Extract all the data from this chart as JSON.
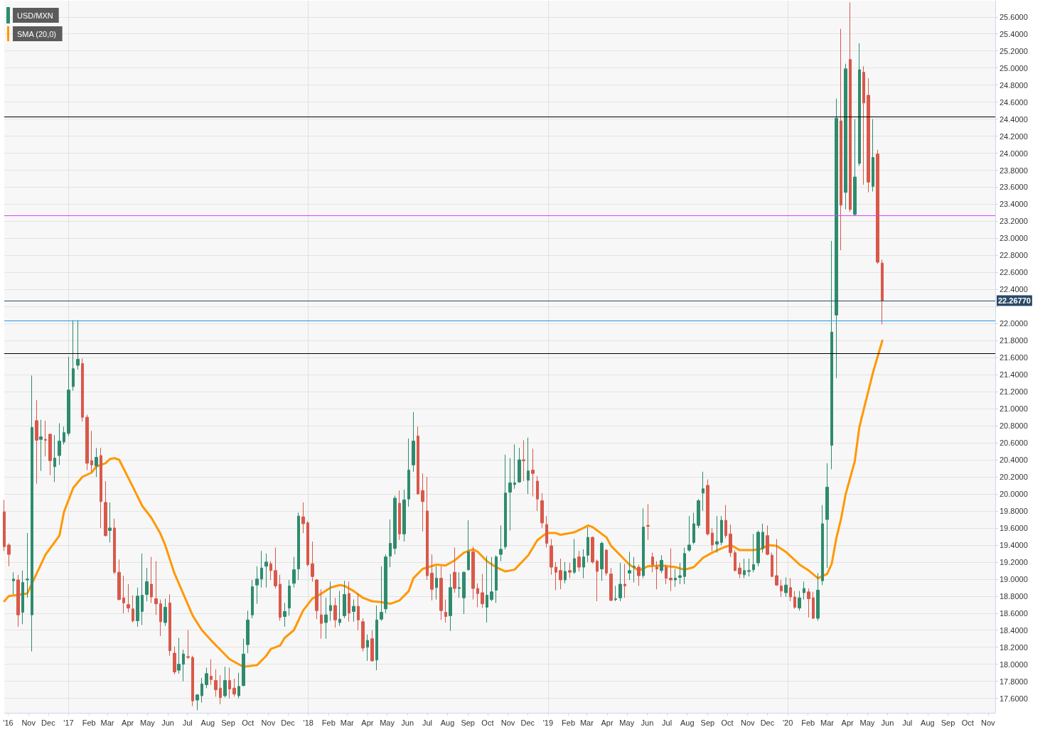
{
  "chart_data": {
    "type": "candlestick",
    "x": [
      "2016-09-25",
      "2016-10-02",
      "2016-10-09",
      "2016-10-16",
      "2016-10-23",
      "2016-10-30",
      "2016-11-06",
      "2016-11-13",
      "2016-11-20",
      "2016-11-27",
      "2016-12-04",
      "2016-12-11",
      "2016-12-18",
      "2016-12-25",
      "2017-01-01",
      "2017-01-08",
      "2017-01-15",
      "2017-01-22",
      "2017-01-29",
      "2017-02-05",
      "2017-02-12",
      "2017-02-19",
      "2017-02-26",
      "2017-03-05",
      "2017-03-12",
      "2017-03-19",
      "2017-03-26",
      "2017-04-02",
      "2017-04-09",
      "2017-04-16",
      "2017-04-23",
      "2017-04-30",
      "2017-05-07",
      "2017-05-14",
      "2017-05-21",
      "2017-05-28",
      "2017-06-04",
      "2017-06-11",
      "2017-06-18",
      "2017-06-25",
      "2017-07-02",
      "2017-07-09",
      "2017-07-16",
      "2017-07-23",
      "2017-07-30",
      "2017-08-06",
      "2017-08-13",
      "2017-08-20",
      "2017-08-27",
      "2017-09-03",
      "2017-09-10",
      "2017-09-17",
      "2017-09-24",
      "2017-10-01",
      "2017-10-08",
      "2017-10-15",
      "2017-10-22",
      "2017-10-29",
      "2017-11-05",
      "2017-11-12",
      "2017-11-19",
      "2017-11-26",
      "2017-12-03",
      "2017-12-10",
      "2017-12-17",
      "2017-12-24",
      "2017-12-31",
      "2018-01-07",
      "2018-01-14",
      "2018-01-21",
      "2018-01-28",
      "2018-02-04",
      "2018-02-11",
      "2018-02-18",
      "2018-02-25",
      "2018-03-04",
      "2018-03-11",
      "2018-03-18",
      "2018-03-25",
      "2018-04-01",
      "2018-04-08",
      "2018-04-15",
      "2018-04-22",
      "2018-04-29",
      "2018-05-06",
      "2018-05-13",
      "2018-05-20",
      "2018-05-27",
      "2018-06-03",
      "2018-06-10",
      "2018-06-17",
      "2018-06-24",
      "2018-07-01",
      "2018-07-08",
      "2018-07-15",
      "2018-07-22",
      "2018-07-29",
      "2018-08-05",
      "2018-08-12",
      "2018-08-19",
      "2018-08-26",
      "2018-09-02",
      "2018-09-09",
      "2018-09-16",
      "2018-09-23",
      "2018-09-30",
      "2018-10-07",
      "2018-10-14",
      "2018-10-21",
      "2018-10-28",
      "2018-11-04",
      "2018-11-11",
      "2018-11-18",
      "2018-11-25",
      "2018-12-02",
      "2018-12-09",
      "2018-12-16",
      "2018-12-23",
      "2018-12-30",
      "2019-01-06",
      "2019-01-13",
      "2019-01-20",
      "2019-01-27",
      "2019-02-03",
      "2019-02-10",
      "2019-02-17",
      "2019-02-24",
      "2019-03-03",
      "2019-03-10",
      "2019-03-17",
      "2019-03-24",
      "2019-03-31",
      "2019-04-07",
      "2019-04-14",
      "2019-04-21",
      "2019-04-28",
      "2019-05-05",
      "2019-05-12",
      "2019-05-19",
      "2019-05-26",
      "2019-06-02",
      "2019-06-09",
      "2019-06-16",
      "2019-06-23",
      "2019-06-30",
      "2019-07-07",
      "2019-07-14",
      "2019-07-21",
      "2019-07-28",
      "2019-08-04",
      "2019-08-11",
      "2019-08-18",
      "2019-08-25",
      "2019-09-01",
      "2019-09-08",
      "2019-09-15",
      "2019-09-22",
      "2019-09-29",
      "2019-10-06",
      "2019-10-13",
      "2019-10-20",
      "2019-10-27",
      "2019-11-03",
      "2019-11-10",
      "2019-11-17",
      "2019-11-24",
      "2019-12-01",
      "2019-12-08",
      "2019-12-15",
      "2019-12-22",
      "2019-12-29",
      "2020-01-05",
      "2020-01-12",
      "2020-01-19",
      "2020-01-26",
      "2020-02-02",
      "2020-02-09",
      "2020-02-16",
      "2020-02-23",
      "2020-03-01",
      "2020-03-08",
      "2020-03-15",
      "2020-03-22",
      "2020-03-29",
      "2020-04-05",
      "2020-04-12",
      "2020-04-19",
      "2020-04-26",
      "2020-05-03",
      "2020-05-10",
      "2020-05-17",
      "2020-05-24"
    ],
    "series": [
      {
        "name": "USD/MXN",
        "ohlc": [
          [
            19.79,
            19.93,
            19.33,
            19.38
          ],
          [
            19.4,
            19.42,
            19.15,
            19.29
          ],
          [
            18.98,
            19.08,
            18.82,
            19.0
          ],
          [
            18.99,
            19.05,
            18.44,
            18.58
          ],
          [
            18.61,
            19.1,
            18.47,
            18.96
          ],
          [
            18.99,
            19.54,
            18.78,
            19.0
          ],
          [
            18.58,
            21.39,
            18.15,
            20.78
          ],
          [
            20.86,
            21.1,
            20.12,
            20.63
          ],
          [
            20.64,
            20.87,
            20.27,
            20.67
          ],
          [
            20.64,
            20.86,
            20.44,
            20.63
          ],
          [
            20.7,
            20.71,
            20.22,
            20.39
          ],
          [
            20.32,
            20.69,
            20.14,
            20.42
          ],
          [
            20.45,
            20.83,
            20.34,
            20.62
          ],
          [
            20.61,
            20.79,
            20.58,
            20.72
          ],
          [
            20.71,
            21.61,
            20.68,
            21.22
          ],
          [
            21.26,
            22.04,
            21.21,
            21.47
          ],
          [
            21.51,
            22.04,
            21.46,
            21.58
          ],
          [
            21.53,
            21.59,
            20.85,
            20.9
          ],
          [
            20.9,
            20.93,
            20.28,
            20.36
          ],
          [
            20.39,
            20.74,
            20.26,
            20.34
          ],
          [
            20.33,
            20.54,
            20.2,
            20.43
          ],
          [
            20.45,
            20.54,
            19.6,
            19.91
          ],
          [
            19.9,
            20.15,
            19.5,
            19.51
          ],
          [
            19.57,
            19.9,
            19.43,
            19.6
          ],
          [
            19.6,
            19.71,
            19.06,
            19.08
          ],
          [
            19.08,
            19.23,
            18.75,
            18.76
          ],
          [
            18.78,
            19.04,
            18.6,
            18.72
          ],
          [
            18.7,
            18.94,
            18.61,
            18.66
          ],
          [
            18.65,
            18.81,
            18.49,
            18.51
          ],
          [
            18.51,
            18.9,
            18.44,
            18.8
          ],
          [
            18.62,
            19.3,
            18.46,
            18.81
          ],
          [
            18.82,
            19.13,
            18.74,
            18.97
          ],
          [
            18.94,
            19.26,
            18.72,
            18.79
          ],
          [
            18.77,
            19.21,
            18.58,
            18.71
          ],
          [
            18.71,
            18.76,
            18.33,
            18.5
          ],
          [
            18.49,
            18.77,
            18.45,
            18.67
          ],
          [
            18.72,
            18.82,
            18.1,
            18.16
          ],
          [
            18.13,
            18.21,
            17.88,
            17.91
          ],
          [
            17.93,
            18.31,
            17.89,
            18.0
          ],
          [
            18.0,
            18.17,
            17.8,
            18.12
          ],
          [
            18.09,
            18.4,
            18.06,
            18.08
          ],
          [
            18.08,
            18.1,
            17.51,
            17.57
          ],
          [
            17.58,
            17.65,
            17.46,
            17.64
          ],
          [
            17.63,
            17.84,
            17.55,
            17.77
          ],
          [
            17.76,
            17.96,
            17.72,
            17.89
          ],
          [
            17.86,
            18.06,
            17.76,
            17.82
          ],
          [
            17.81,
            17.94,
            17.62,
            17.7
          ],
          [
            17.72,
            17.87,
            17.53,
            17.61
          ],
          [
            17.63,
            17.97,
            17.61,
            17.81
          ],
          [
            17.81,
            17.96,
            17.6,
            17.71
          ],
          [
            17.72,
            17.83,
            17.62,
            17.65
          ],
          [
            17.63,
            17.9,
            17.6,
            17.74
          ],
          [
            17.75,
            18.3,
            17.74,
            18.12
          ],
          [
            18.23,
            18.63,
            18.13,
            18.52
          ],
          [
            18.58,
            18.99,
            18.54,
            18.91
          ],
          [
            18.93,
            19.15,
            18.71,
            19.0
          ],
          [
            19.0,
            19.33,
            18.9,
            19.13
          ],
          [
            19.15,
            19.3,
            18.9,
            19.2
          ],
          [
            19.18,
            19.21,
            18.99,
            19.1
          ],
          [
            19.1,
            19.37,
            18.89,
            18.92
          ],
          [
            18.94,
            19.05,
            18.51,
            18.55
          ],
          [
            18.56,
            18.72,
            18.44,
            18.62
          ],
          [
            18.66,
            18.99,
            18.57,
            18.92
          ],
          [
            18.95,
            19.26,
            18.9,
            19.11
          ],
          [
            19.12,
            19.78,
            18.99,
            19.74
          ],
          [
            19.73,
            19.9,
            19.54,
            19.65
          ],
          [
            19.66,
            19.68,
            19.15,
            19.17
          ],
          [
            19.18,
            19.44,
            18.97,
            19.03
          ],
          [
            18.99,
            19.0,
            18.53,
            18.63
          ],
          [
            18.58,
            18.88,
            18.3,
            18.48
          ],
          [
            18.49,
            18.78,
            18.3,
            18.58
          ],
          [
            18.63,
            18.97,
            18.51,
            18.69
          ],
          [
            18.69,
            18.78,
            18.43,
            18.52
          ],
          [
            18.49,
            18.86,
            18.45,
            18.53
          ],
          [
            18.57,
            18.98,
            18.54,
            18.82
          ],
          [
            18.83,
            18.97,
            18.5,
            18.6
          ],
          [
            18.62,
            18.76,
            18.5,
            18.68
          ],
          [
            18.68,
            18.83,
            18.4,
            18.52
          ],
          [
            18.5,
            18.54,
            18.15,
            18.19
          ],
          [
            18.2,
            18.35,
            18.04,
            18.28
          ],
          [
            18.3,
            18.4,
            18.03,
            18.04
          ],
          [
            18.05,
            18.69,
            17.93,
            18.52
          ],
          [
            18.53,
            19.15,
            18.51,
            18.61
          ],
          [
            18.65,
            19.29,
            18.6,
            19.26
          ],
          [
            19.27,
            19.7,
            19.14,
            19.42
          ],
          [
            19.36,
            19.98,
            19.29,
            19.95
          ],
          [
            19.89,
            20.04,
            19.46,
            19.53
          ],
          [
            19.53,
            20.05,
            19.44,
            19.93
          ],
          [
            19.94,
            20.65,
            19.85,
            20.28
          ],
          [
            20.34,
            20.96,
            20.26,
            20.62
          ],
          [
            20.68,
            20.79,
            19.99,
            20.0
          ],
          [
            20.04,
            20.24,
            19.56,
            19.91
          ],
          [
            19.8,
            20.2,
            18.99,
            19.04
          ],
          [
            19.07,
            19.29,
            18.75,
            18.88
          ],
          [
            18.9,
            19.15,
            18.76,
            19.01
          ],
          [
            19.01,
            19.15,
            18.52,
            18.63
          ],
          [
            18.61,
            18.76,
            18.49,
            18.56
          ],
          [
            18.57,
            19.06,
            18.39,
            18.9
          ],
          [
            19.08,
            19.37,
            18.84,
            18.89
          ],
          [
            18.89,
            19.08,
            18.78,
            18.9
          ],
          [
            18.78,
            19.09,
            18.59,
            19.08
          ],
          [
            19.11,
            19.69,
            19.1,
            19.32
          ],
          [
            19.32,
            19.38,
            18.76,
            18.89
          ],
          [
            18.89,
            18.95,
            18.67,
            18.83
          ],
          [
            18.84,
            19.06,
            18.66,
            18.71
          ],
          [
            18.67,
            19.27,
            18.49,
            18.81
          ],
          [
            18.76,
            19.26,
            18.74,
            18.85
          ],
          [
            18.87,
            19.28,
            18.72,
            19.26
          ],
          [
            19.29,
            19.63,
            19.21,
            19.35
          ],
          [
            19.38,
            20.46,
            19.35,
            20.01
          ],
          [
            20.02,
            20.42,
            19.57,
            20.13
          ],
          [
            20.11,
            20.58,
            20.06,
            20.13
          ],
          [
            20.14,
            20.54,
            20.13,
            20.4
          ],
          [
            20.4,
            20.63,
            20.15,
            20.39
          ],
          [
            20.16,
            20.66,
            20.0,
            20.27
          ],
          [
            20.28,
            20.53,
            19.97,
            20.24
          ],
          [
            20.15,
            20.21,
            19.8,
            19.94
          ],
          [
            19.92,
            20.01,
            19.6,
            19.66
          ],
          [
            19.64,
            19.74,
            19.37,
            19.42
          ],
          [
            19.39,
            19.47,
            19.05,
            19.14
          ],
          [
            19.14,
            19.2,
            18.87,
            19.08
          ],
          [
            19.1,
            19.24,
            18.88,
            18.99
          ],
          [
            18.99,
            19.2,
            18.95,
            19.09
          ],
          [
            19.1,
            19.19,
            19.01,
            19.08
          ],
          [
            19.08,
            19.47,
            19.06,
            19.24
          ],
          [
            19.26,
            19.33,
            19.09,
            19.14
          ],
          [
            19.14,
            19.35,
            19.01,
            19.26
          ],
          [
            19.28,
            19.61,
            19.2,
            19.49
          ],
          [
            19.49,
            19.5,
            19.18,
            19.2
          ],
          [
            19.21,
            19.23,
            18.74,
            19.09
          ],
          [
            19.12,
            19.44,
            18.98,
            19.42
          ],
          [
            19.34,
            19.35,
            19.04,
            19.07
          ],
          [
            19.06,
            19.13,
            18.74,
            18.75
          ],
          [
            18.76,
            18.92,
            18.74,
            18.77
          ],
          [
            18.78,
            19.19,
            18.74,
            18.94
          ],
          [
            18.94,
            19.18,
            18.78,
            18.92
          ],
          [
            19.07,
            19.32,
            18.99,
            19.1
          ],
          [
            19.14,
            19.26,
            18.96,
            19.15
          ],
          [
            19.14,
            19.17,
            18.92,
            19.04
          ],
          [
            19.04,
            19.83,
            19.01,
            19.61
          ],
          [
            19.63,
            19.88,
            19.46,
            19.62
          ],
          [
            19.26,
            19.31,
            19.08,
            19.17
          ],
          [
            19.14,
            19.21,
            18.88,
            19.12
          ],
          [
            19.1,
            19.28,
            19.07,
            19.22
          ],
          [
            19.14,
            19.17,
            18.94,
            19.01
          ],
          [
            19.01,
            19.36,
            18.86,
            18.99
          ],
          [
            18.99,
            19.12,
            18.91,
            19.01
          ],
          [
            19.02,
            19.19,
            18.94,
            19.04
          ],
          [
            19.03,
            19.37,
            18.94,
            19.3
          ],
          [
            19.34,
            19.74,
            19.32,
            19.4
          ],
          [
            19.43,
            19.78,
            19.41,
            19.65
          ],
          [
            19.63,
            19.94,
            19.6,
            19.92
          ],
          [
            20.01,
            20.26,
            19.8,
            20.06
          ],
          [
            20.1,
            20.17,
            19.51,
            19.53
          ],
          [
            19.54,
            19.6,
            19.33,
            19.4
          ],
          [
            19.41,
            19.74,
            19.31,
            19.44
          ],
          [
            19.43,
            19.74,
            19.4,
            19.69
          ],
          [
            19.69,
            19.87,
            19.48,
            19.51
          ],
          [
            19.53,
            19.64,
            19.26,
            19.31
          ],
          [
            19.31,
            19.34,
            19.09,
            19.1
          ],
          [
            19.13,
            19.19,
            19.01,
            19.06
          ],
          [
            19.05,
            19.24,
            19.01,
            19.1
          ],
          [
            19.09,
            19.24,
            19.03,
            19.1
          ],
          [
            19.11,
            19.53,
            19.08,
            19.17
          ],
          [
            19.19,
            19.57,
            19.15,
            19.55
          ],
          [
            19.36,
            19.65,
            19.31,
            19.55
          ],
          [
            19.51,
            19.63,
            19.28,
            19.29
          ],
          [
            19.28,
            19.31,
            19.03,
            19.03
          ],
          [
            19.04,
            19.47,
            18.92,
            18.93
          ],
          [
            18.92,
            18.99,
            18.79,
            18.86
          ],
          [
            18.84,
            19.02,
            18.79,
            18.93
          ],
          [
            18.9,
            19.01,
            18.74,
            18.79
          ],
          [
            18.79,
            18.86,
            18.65,
            18.67
          ],
          [
            18.66,
            18.86,
            18.63,
            18.78
          ],
          [
            18.84,
            18.97,
            18.76,
            18.89
          ],
          [
            18.85,
            18.89,
            18.55,
            18.77
          ],
          [
            18.78,
            18.85,
            18.53,
            18.54
          ],
          [
            18.54,
            19.07,
            18.51,
            18.87
          ],
          [
            18.98,
            19.87,
            18.93,
            19.65
          ],
          [
            19.7,
            20.36,
            19.13,
            20.08
          ],
          [
            20.57,
            22.97,
            20.29,
            21.9
          ],
          [
            22.1,
            24.64,
            21.36,
            24.41
          ],
          [
            24.38,
            25.46,
            22.86,
            23.39
          ],
          [
            23.54,
            25.05,
            23.34,
            24.99
          ],
          [
            25.1,
            25.77,
            23.31,
            23.34
          ],
          [
            23.28,
            24.4,
            23.27,
            23.72
          ],
          [
            23.88,
            25.29,
            23.85,
            24.98
          ],
          [
            24.95,
            25.02,
            23.63,
            24.59
          ],
          [
            24.68,
            24.88,
            23.54,
            23.66
          ],
          [
            23.61,
            24.4,
            23.55,
            23.95
          ],
          [
            23.99,
            24.04,
            22.7,
            22.72
          ],
          [
            22.71,
            22.75,
            21.99,
            22.27
          ]
        ]
      },
      {
        "name": "SMA (20,0)",
        "type": "line",
        "color": "#ff9800",
        "x": [
          "2016-09-25",
          "2016-10-02",
          "2016-10-30",
          "2016-11-27",
          "2016-12-18",
          "2016-12-25",
          "2017-01-08",
          "2017-01-22",
          "2017-02-05",
          "2017-02-12",
          "2017-02-26",
          "2017-03-05",
          "2017-03-12",
          "2017-03-19",
          "2017-04-09",
          "2017-04-23",
          "2017-05-07",
          "2017-05-21",
          "2017-05-28",
          "2017-06-11",
          "2017-06-25",
          "2017-07-09",
          "2017-07-23",
          "2017-08-06",
          "2017-08-20",
          "2017-09-03",
          "2017-09-24",
          "2017-10-15",
          "2017-10-29",
          "2017-11-05",
          "2017-11-19",
          "2017-11-26",
          "2017-12-10",
          "2017-12-24",
          "2018-01-07",
          "2018-01-21",
          "2018-02-04",
          "2018-02-18",
          "2018-02-25",
          "2018-03-11",
          "2018-03-25",
          "2018-04-08",
          "2018-04-22",
          "2018-05-06",
          "2018-05-20",
          "2018-06-03",
          "2018-06-10",
          "2018-06-24",
          "2018-07-15",
          "2018-07-29",
          "2018-08-12",
          "2018-08-26",
          "2018-09-09",
          "2018-09-16",
          "2018-09-30",
          "2018-10-14",
          "2018-10-28",
          "2018-11-11",
          "2018-12-02",
          "2018-12-16",
          "2018-12-30",
          "2019-01-13",
          "2019-01-20",
          "2019-02-10",
          "2019-02-24",
          "2019-03-03",
          "2019-03-10",
          "2019-03-31",
          "2019-04-07",
          "2019-04-21",
          "2019-05-05",
          "2019-05-19",
          "2019-06-02",
          "2019-06-23",
          "2019-07-14",
          "2019-07-28",
          "2019-08-11",
          "2019-08-25",
          "2019-09-08",
          "2019-09-22",
          "2019-10-06",
          "2019-10-20",
          "2019-11-10",
          "2019-11-24",
          "2019-12-01",
          "2019-12-15",
          "2019-12-29",
          "2020-01-19",
          "2020-02-02",
          "2020-02-16",
          "2020-03-01",
          "2020-03-08",
          "2020-03-15",
          "2020-03-22",
          "2020-03-29",
          "2020-04-12",
          "2020-04-19",
          "2020-04-26",
          "2020-05-10",
          "2020-05-24"
        ],
        "values": [
          18.74,
          18.8,
          18.83,
          19.29,
          19.51,
          19.79,
          20.07,
          20.2,
          20.25,
          20.32,
          20.36,
          20.41,
          20.42,
          20.4,
          20.08,
          19.86,
          19.72,
          19.53,
          19.4,
          19.07,
          18.82,
          18.57,
          18.4,
          18.28,
          18.17,
          18.06,
          17.97,
          17.99,
          18.1,
          18.18,
          18.22,
          18.31,
          18.4,
          18.63,
          18.77,
          18.83,
          18.9,
          18.93,
          18.92,
          18.86,
          18.78,
          18.74,
          18.73,
          18.71,
          18.75,
          18.86,
          19.01,
          19.12,
          19.17,
          19.16,
          19.22,
          19.31,
          19.35,
          19.32,
          19.21,
          19.14,
          19.09,
          19.11,
          19.28,
          19.46,
          19.54,
          19.54,
          19.52,
          19.55,
          19.6,
          19.63,
          19.61,
          19.49,
          19.39,
          19.28,
          19.17,
          19.1,
          19.15,
          19.16,
          19.14,
          19.11,
          19.14,
          19.25,
          19.31,
          19.36,
          19.4,
          19.34,
          19.34,
          19.36,
          19.4,
          19.39,
          19.32,
          19.17,
          19.1,
          19.01,
          19.06,
          19.18,
          19.48,
          19.7,
          19.99,
          20.38,
          20.78,
          21.0,
          21.43,
          21.8
        ]
      }
    ],
    "xlim": [
      "2016-09-25",
      "2020-11-12"
    ],
    "xticks": [
      {
        "value": "2016-10-01",
        "label": "'16"
      },
      {
        "value": "2016-11-01",
        "label": "Nov"
      },
      {
        "value": "2016-12-01",
        "label": "Dec"
      },
      {
        "value": "2017-01-01",
        "label": "'17"
      },
      {
        "value": "2017-02-01",
        "label": "Feb"
      },
      {
        "value": "2017-03-01",
        "label": "Mar"
      },
      {
        "value": "2017-04-01",
        "label": "Apr"
      },
      {
        "value": "2017-05-01",
        "label": "May"
      },
      {
        "value": "2017-06-01",
        "label": "Jun"
      },
      {
        "value": "2017-07-01",
        "label": "Jul"
      },
      {
        "value": "2017-08-01",
        "label": "Aug"
      },
      {
        "value": "2017-09-01",
        "label": "Sep"
      },
      {
        "value": "2017-10-01",
        "label": "Oct"
      },
      {
        "value": "2017-11-01",
        "label": "Nov"
      },
      {
        "value": "2017-12-01",
        "label": "Dec"
      },
      {
        "value": "2018-01-01",
        "label": "'18"
      },
      {
        "value": "2018-02-01",
        "label": "Feb"
      },
      {
        "value": "2018-03-01",
        "label": "Mar"
      },
      {
        "value": "2018-04-01",
        "label": "Apr"
      },
      {
        "value": "2018-05-01",
        "label": "May"
      },
      {
        "value": "2018-06-01",
        "label": "Jun"
      },
      {
        "value": "2018-07-01",
        "label": "Jul"
      },
      {
        "value": "2018-08-01",
        "label": "Aug"
      },
      {
        "value": "2018-09-01",
        "label": "Sep"
      },
      {
        "value": "2018-10-01",
        "label": "Oct"
      },
      {
        "value": "2018-11-01",
        "label": "Nov"
      },
      {
        "value": "2018-12-01",
        "label": "Dec"
      },
      {
        "value": "2019-01-01",
        "label": "'19"
      },
      {
        "value": "2019-02-01",
        "label": "Feb"
      },
      {
        "value": "2019-03-01",
        "label": "Mar"
      },
      {
        "value": "2019-04-01",
        "label": "Apr"
      },
      {
        "value": "2019-05-01",
        "label": "May"
      },
      {
        "value": "2019-06-01",
        "label": "Jun"
      },
      {
        "value": "2019-07-01",
        "label": "Jul"
      },
      {
        "value": "2019-08-01",
        "label": "Aug"
      },
      {
        "value": "2019-09-01",
        "label": "Sep"
      },
      {
        "value": "2019-10-01",
        "label": "Oct"
      },
      {
        "value": "2019-11-01",
        "label": "Nov"
      },
      {
        "value": "2019-12-01",
        "label": "Dec"
      },
      {
        "value": "2020-01-01",
        "label": "'20"
      },
      {
        "value": "2020-02-01",
        "label": "Feb"
      },
      {
        "value": "2020-03-01",
        "label": "Mar"
      },
      {
        "value": "2020-04-01",
        "label": "Apr"
      },
      {
        "value": "2020-05-01",
        "label": "May"
      },
      {
        "value": "2020-06-01",
        "label": "Jun"
      },
      {
        "value": "2020-07-01",
        "label": "Jul"
      },
      {
        "value": "2020-08-01",
        "label": "Aug"
      },
      {
        "value": "2020-09-01",
        "label": "Sep"
      },
      {
        "value": "2020-10-01",
        "label": "Oct"
      },
      {
        "value": "2020-11-01",
        "label": "Nov"
      }
    ],
    "ylim": [
      17.43,
      25.79
    ],
    "yticks": [
      {
        "value": 17.6,
        "label": "17.6000"
      },
      {
        "value": 17.8,
        "label": "17.8000"
      },
      {
        "value": 18.0,
        "label": "18.0000"
      },
      {
        "value": 18.2,
        "label": "18.2000"
      },
      {
        "value": 18.4,
        "label": "18.4000"
      },
      {
        "value": 18.6,
        "label": "18.6000"
      },
      {
        "value": 18.8,
        "label": "18.8000"
      },
      {
        "value": 19.0,
        "label": "19.0000"
      },
      {
        "value": 19.2,
        "label": "19.2000"
      },
      {
        "value": 19.4,
        "label": "19.4000"
      },
      {
        "value": 19.6,
        "label": "19.6000"
      },
      {
        "value": 19.8,
        "label": "19.8000"
      },
      {
        "value": 20.0,
        "label": "20.0000"
      },
      {
        "value": 20.2,
        "label": "20.2000"
      },
      {
        "value": 20.4,
        "label": "20.4000"
      },
      {
        "value": 20.6,
        "label": "20.6000"
      },
      {
        "value": 20.8,
        "label": "20.8000"
      },
      {
        "value": 21.0,
        "label": "21.0000"
      },
      {
        "value": 21.2,
        "label": "21.2000"
      },
      {
        "value": 21.4,
        "label": "21.4000"
      },
      {
        "value": 21.6,
        "label": "21.6000"
      },
      {
        "value": 21.8,
        "label": "21.8000"
      },
      {
        "value": 22.0,
        "label": "22.0000"
      },
      {
        "value": 22.2,
        "label": null
      },
      {
        "value": 22.4,
        "label": "22.4000"
      },
      {
        "value": 22.6,
        "label": "22.6000"
      },
      {
        "value": 22.8,
        "label": "22.8000"
      },
      {
        "value": 23.0,
        "label": "23.0000"
      },
      {
        "value": 23.2,
        "label": "23.2000"
      },
      {
        "value": 23.4,
        "label": "23.4000"
      },
      {
        "value": 23.6,
        "label": "23.6000"
      },
      {
        "value": 23.8,
        "label": "23.8000"
      },
      {
        "value": 24.0,
        "label": "24.0000"
      },
      {
        "value": 24.2,
        "label": "24.2000"
      },
      {
        "value": 24.4,
        "label": "24.4000"
      },
      {
        "value": 24.6,
        "label": "24.6000"
      },
      {
        "value": 24.8,
        "label": "24.8000"
      },
      {
        "value": 25.0,
        "label": "25.0000"
      },
      {
        "value": 25.2,
        "label": "25.2000"
      },
      {
        "value": 25.4,
        "label": "25.4000"
      },
      {
        "value": 25.6,
        "label": "25.6000"
      }
    ],
    "ref_lines": [
      {
        "axis": "y",
        "value": 24.43,
        "color": "#000000"
      },
      {
        "axis": "y",
        "value": 23.27,
        "color": "#e040fb"
      },
      {
        "axis": "y",
        "value": 22.2677,
        "label": "22.26770",
        "color": "#2b4a68"
      },
      {
        "axis": "y",
        "value": 22.03,
        "color": "#2196f3"
      },
      {
        "axis": "y",
        "value": 21.65,
        "color": "#000000"
      }
    ],
    "grid": true,
    "legend": "top left",
    "marker": "none",
    "line_style": "solid"
  }
}
